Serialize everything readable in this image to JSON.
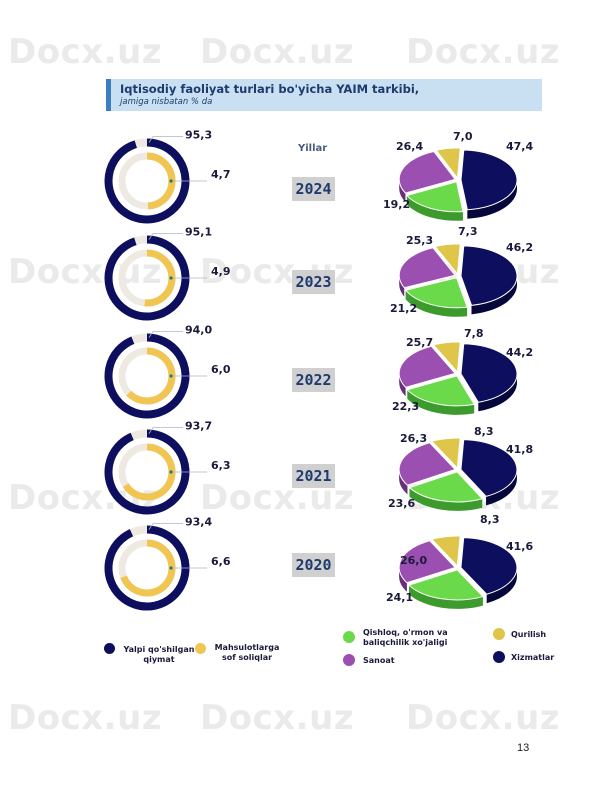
{
  "header": {
    "title": "Iqtisodiy faoliyat turlari bo'yicha YAIM tarkibi,",
    "subtitle": "jamiga nisbatan % da"
  },
  "watermark": "Docx.uz",
  "years_label": "Yillar",
  "colors": {
    "navy": "#0d0f5e",
    "yellow": "#f1c551",
    "green": "#6ad94a",
    "purple": "#9b4fb0",
    "gold": "#dfc54a",
    "track": "#eeeae2"
  },
  "chart_data": [
    {
      "type": "donut",
      "title": "",
      "categories": [
        "2024",
        "2023",
        "2022",
        "2021",
        "2020"
      ],
      "series": [
        {
          "name": "Yalpi qo'shilgan qiymat",
          "values": [
            95.3,
            95.1,
            94.0,
            93.7,
            93.4
          ]
        },
        {
          "name": "Mahsulotlarga sof soliqlar",
          "values": [
            4.7,
            4.9,
            6.0,
            6.3,
            6.6
          ]
        }
      ],
      "value_labels": [
        [
          "95,3",
          "4,7"
        ],
        [
          "95,1",
          "4,9"
        ],
        [
          "94,0",
          "6,0"
        ],
        [
          "93,7",
          "6,3"
        ],
        [
          "93,4",
          "6,6"
        ]
      ]
    },
    {
      "type": "pie",
      "title": "",
      "categories": [
        "Xizmatlar",
        "Qishloq, o'rmon va baliqchilik xo'jaligi",
        "Sanoat",
        "Qurilish"
      ],
      "years": [
        "2024",
        "2023",
        "2022",
        "2021",
        "2020"
      ],
      "values": [
        [
          47.4,
          19.2,
          26.4,
          7.0
        ],
        [
          46.2,
          21.2,
          25.3,
          7.3
        ],
        [
          44.2,
          22.3,
          25.7,
          7.8
        ],
        [
          41.8,
          23.6,
          26.3,
          8.3
        ],
        [
          41.6,
          24.1,
          26.0,
          8.3
        ]
      ],
      "value_labels": [
        [
          "47,4",
          "19,2",
          "26,4",
          "7,0"
        ],
        [
          "46,2",
          "21,2",
          "25,3",
          "7,3"
        ],
        [
          "44,2",
          "22,3",
          "25,7",
          "7,8"
        ],
        [
          "41,8",
          "23,6",
          "26,3",
          "8,3"
        ],
        [
          "41,6",
          "24,1",
          "26,0",
          "8,3"
        ]
      ]
    }
  ],
  "legend": {
    "left": [
      {
        "label": "Yalpi qo'shilgan qiymat",
        "color": "#0d0f5e"
      },
      {
        "label": "Mahsulotlarga sof soliqlar",
        "color": "#f1c551"
      }
    ],
    "right": [
      {
        "label": "Qishloq, o'rmon va baliqchilik xo'jaligi",
        "color": "#6ad94a"
      },
      {
        "label": "Qurilish",
        "color": "#dfc54a"
      },
      {
        "label": "Sanoat",
        "color": "#9b4fb0"
      },
      {
        "label": "Xizmatlar",
        "color": "#0d0f5e"
      }
    ]
  },
  "page_number": "13"
}
